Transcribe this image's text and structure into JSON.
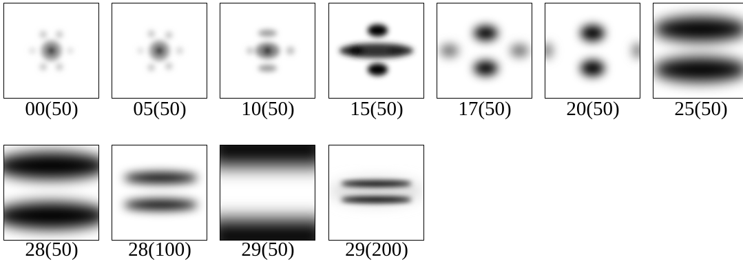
{
  "panels": [
    {
      "label": "00(50)",
      "pattern": "dot-ring"
    },
    {
      "label": "05(50)",
      "pattern": "dot-ring"
    },
    {
      "label": "10(50)",
      "pattern": "dot-ring-stretched"
    },
    {
      "label": "15(50)",
      "pattern": "cross-blobs"
    },
    {
      "label": "17(50)",
      "pattern": "lobes-four"
    },
    {
      "label": "20(50)",
      "pattern": "lobes-two"
    },
    {
      "label": "25(50)",
      "pattern": "bands-wide"
    },
    {
      "label": "28(50)",
      "pattern": "bands-wide-dark"
    },
    {
      "label": "28(100)",
      "pattern": "bands-narrow"
    },
    {
      "label": "29(50)",
      "pattern": "bands-edge"
    },
    {
      "label": "29(200)",
      "pattern": "bands-thin"
    }
  ]
}
